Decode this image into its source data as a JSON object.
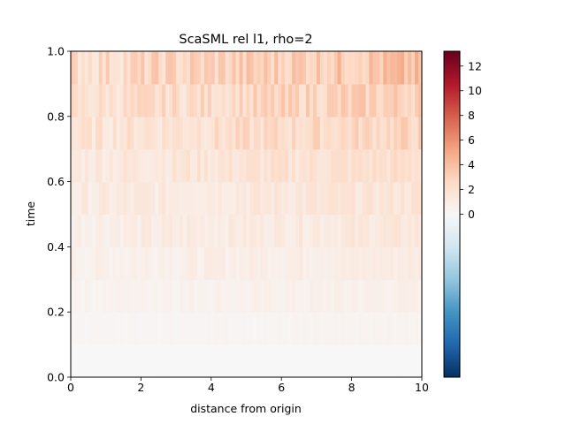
{
  "chart_data": {
    "type": "heatmap",
    "title": "ScaSML rel l1, rho=2",
    "xlabel": "distance from origin",
    "ylabel": "time",
    "xlim": [
      0,
      10
    ],
    "ylim": [
      0.0,
      1.0
    ],
    "x_ticks": [
      "0",
      "2",
      "4",
      "6",
      "8",
      "10"
    ],
    "y_ticks": [
      "0.0",
      "0.2",
      "0.4",
      "0.6",
      "0.8",
      "1.0"
    ],
    "grid": false,
    "colormap": "RdBu_r",
    "color_scale": "two-slope, centered at 0",
    "colorbar": {
      "range": [
        -13.0,
        13.2
      ],
      "center": 0,
      "ticks": [
        "0",
        "2",
        "4",
        "6",
        "8",
        "10",
        "12"
      ]
    },
    "row_times": [
      0.0,
      0.1,
      0.2,
      0.3,
      0.4,
      0.5,
      0.6,
      0.7,
      0.8,
      0.9
    ],
    "row_typical_values": [
      0.0,
      0.3,
      0.6,
      0.9,
      1.2,
      1.4,
      1.8,
      2.3,
      2.6,
      3.1
    ],
    "x_columns": 100,
    "colors": {
      "negative_end": "#053061",
      "zero": "#f7f7f7",
      "positive_end": "#67001f"
    }
  }
}
